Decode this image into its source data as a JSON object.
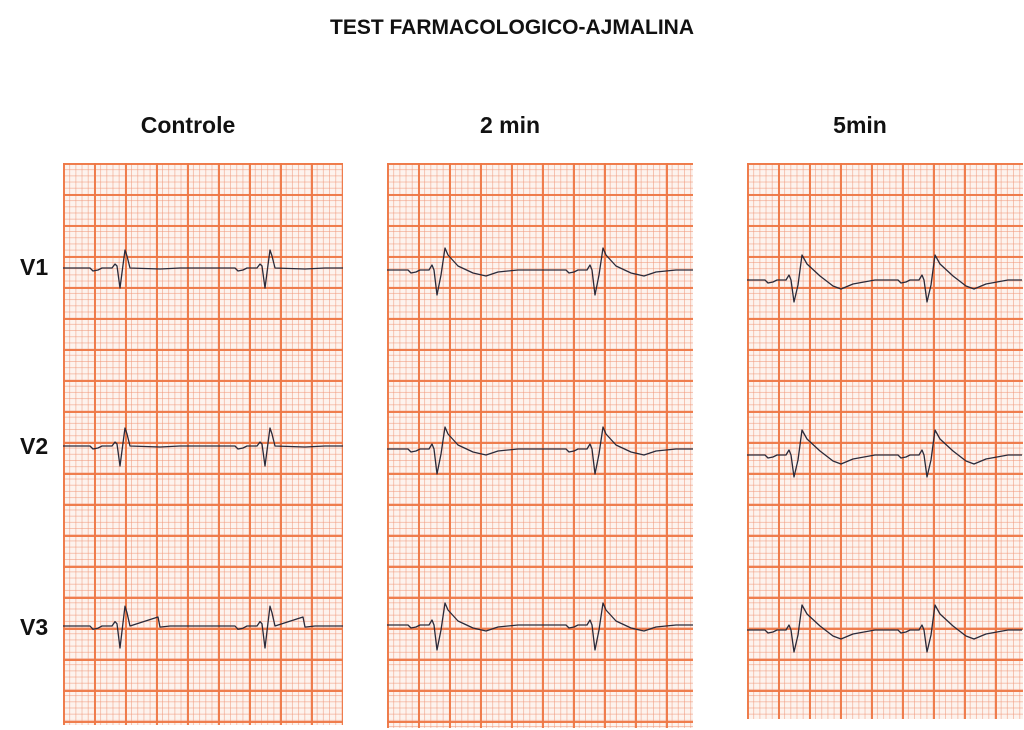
{
  "title": "TEST FARMACOLOGICO-AJMALINA",
  "columns": [
    {
      "label": "Controle",
      "phase": "control"
    },
    {
      "label": "2 min",
      "phase": "mid"
    },
    {
      "label": "5min",
      "phase": "late"
    }
  ],
  "leads": [
    "V1",
    "V2",
    "V3"
  ],
  "colors": {
    "grid_major": "#ee7846",
    "grid_minor": "#f0a080",
    "trace": "#2a2a3a",
    "paper": "#fdf3ee"
  }
}
